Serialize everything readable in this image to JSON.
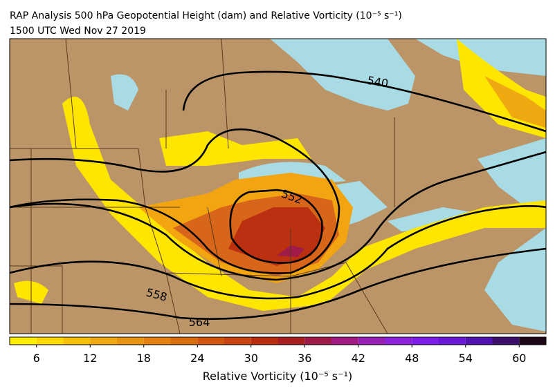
{
  "header": {
    "title": "RAP Analysis 500 hPa Geopotential Height (dam) and Relative Vorticity (10⁻⁵ s⁻¹)",
    "subtitle": "1500 UTC Wed Nov 27 2019"
  },
  "map": {
    "contours": [
      540,
      552,
      558,
      564
    ]
  },
  "colorbar": {
    "label": "Relative Vorticity (10⁻⁵ s⁻¹)",
    "levels": [
      3,
      6,
      9,
      12,
      15,
      18,
      21,
      24,
      27,
      30,
      33,
      36,
      39,
      42,
      45,
      48,
      51,
      54,
      57,
      60,
      63
    ],
    "colors": [
      "#ffee00",
      "#ffd800",
      "#f7bf00",
      "#eea810",
      "#e89410",
      "#e28010",
      "#da6c10",
      "#d05610",
      "#c64210",
      "#ba2e10",
      "#aa2020",
      "#a01a4a",
      "#a01c84",
      "#9820b4",
      "#8e22dc",
      "#7c1ee8",
      "#6818d6",
      "#5012b0",
      "#3c0e6c",
      "#1e0818"
    ],
    "ticks": [
      6,
      12,
      18,
      24,
      30,
      36,
      42,
      48,
      54,
      60
    ]
  }
}
